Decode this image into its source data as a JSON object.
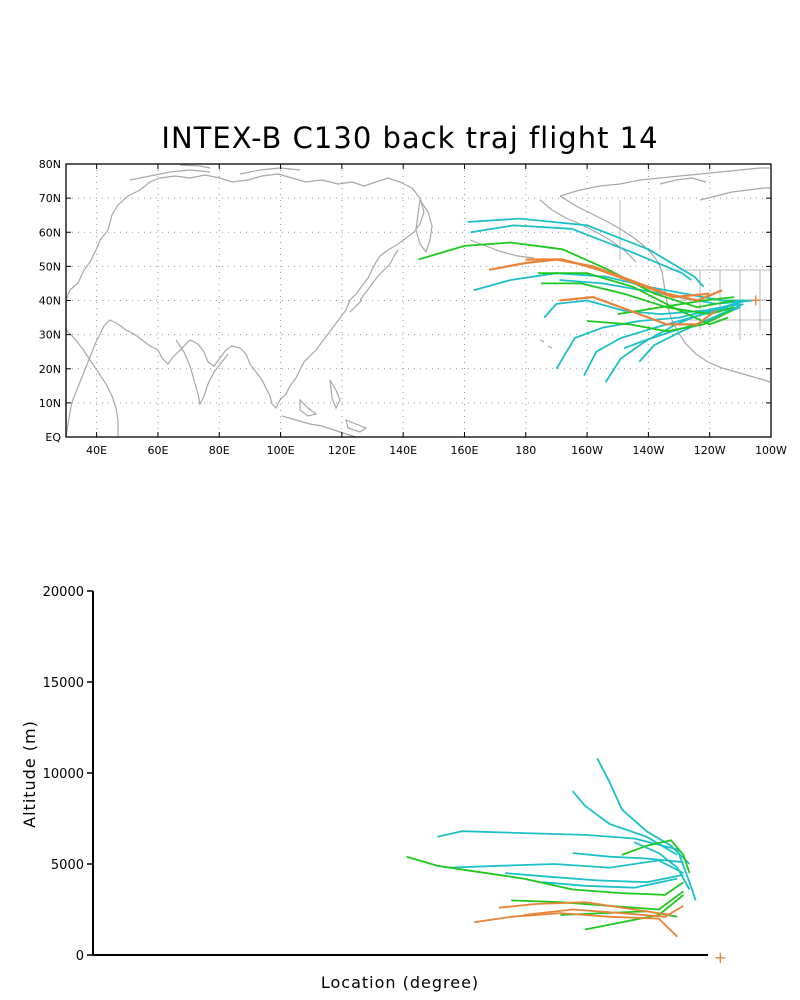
{
  "title": "INTEX-B C130 back traj flight 14",
  "colors": {
    "cyan": "#1ec0c8",
    "green": "#1ec81e",
    "orange": "#e8843a",
    "coastline": "#a8a8a8",
    "axis": "#000000"
  },
  "chart_data": [
    {
      "type": "map-line",
      "title": "INTEX-B C130 back traj flight 14",
      "xlim": [
        30,
        260
      ],
      "ylim": [
        0,
        80
      ],
      "grid": true,
      "lat_ticks": [
        "EQ",
        "10N",
        "20N",
        "30N",
        "40N",
        "50N",
        "60N",
        "70N",
        "80N"
      ],
      "lon_ticks": [
        "40E",
        "60E",
        "80E",
        "100E",
        "120E",
        "140E",
        "160E",
        "180",
        "160W",
        "140W",
        "120W",
        "100W"
      ],
      "end_marker": {
        "lon": 255,
        "lat": 40,
        "symbol": "+",
        "color": "orange"
      },
      "series": [
        {
          "color": "cyan",
          "points": [
            [
              162,
              60
            ],
            [
              176,
              62
            ],
            [
              195,
              61
            ],
            [
              215,
              54
            ],
            [
              231,
              48
            ],
            [
              234,
              46
            ]
          ]
        },
        {
          "color": "cyan",
          "points": [
            [
              161,
              63
            ],
            [
              178,
              64
            ],
            [
              200,
              62
            ],
            [
              220,
              55
            ],
            [
              235,
              47
            ],
            [
              238,
              44
            ]
          ]
        },
        {
          "color": "cyan",
          "points": [
            [
              163,
              43
            ],
            [
              175,
              46
            ],
            [
              190,
              48
            ],
            [
              206,
              47
            ],
            [
              220,
              44
            ],
            [
              232,
              42
            ],
            [
              244,
              40
            ],
            [
              253,
              40
            ]
          ]
        },
        {
          "color": "cyan",
          "points": [
            [
              186,
              35
            ],
            [
              190,
              39
            ],
            [
              200,
              40
            ],
            [
              212,
              37
            ],
            [
              224,
              36
            ],
            [
              238,
              37
            ],
            [
              250,
              39
            ]
          ]
        },
        {
          "color": "cyan",
          "points": [
            [
              190,
              20
            ],
            [
              196,
              29
            ],
            [
              205,
              32
            ],
            [
              217,
              34
            ],
            [
              230,
              35
            ],
            [
              244,
              38
            ],
            [
              252,
              40
            ]
          ]
        },
        {
          "color": "cyan",
          "points": [
            [
              199,
              18
            ],
            [
              203,
              25
            ],
            [
              211,
              29
            ],
            [
              222,
              32
            ],
            [
              234,
              35
            ],
            [
              246,
              38
            ]
          ]
        },
        {
          "color": "cyan",
          "points": [
            [
              206,
              16
            ],
            [
              211,
              23
            ],
            [
              219,
              28
            ],
            [
              229,
              33
            ],
            [
              240,
              37
            ],
            [
              250,
              39
            ]
          ]
        },
        {
          "color": "cyan",
          "points": [
            [
              217,
              22
            ],
            [
              222,
              27
            ],
            [
              231,
              31
            ],
            [
              241,
              35
            ],
            [
              251,
              39
            ]
          ]
        },
        {
          "color": "cyan",
          "points": [
            [
              212,
              26
            ],
            [
              218,
              28
            ],
            [
              228,
              31
            ],
            [
              239,
              34
            ],
            [
              250,
              38
            ]
          ]
        },
        {
          "color": "cyan",
          "points": [
            [
              191,
              46
            ],
            [
              205,
              45
            ],
            [
              218,
              43
            ],
            [
              230,
              41
            ],
            [
              242,
              39
            ],
            [
              254,
              40
            ]
          ]
        },
        {
          "color": "green",
          "points": [
            [
              145,
              52
            ],
            [
              160,
              56
            ],
            [
              175,
              57
            ],
            [
              192,
              55
            ],
            [
              207,
              49
            ],
            [
              222,
              42
            ],
            [
              236,
              38
            ],
            [
              248,
              40
            ]
          ]
        },
        {
          "color": "green",
          "points": [
            [
              185,
              45
            ],
            [
              198,
              45
            ],
            [
              212,
              42
            ],
            [
              226,
              38
            ],
            [
              240,
              36
            ],
            [
              248,
              38
            ]
          ]
        },
        {
          "color": "green",
          "points": [
            [
              184,
              48
            ],
            [
              200,
              48
            ],
            [
              215,
              44
            ],
            [
              228,
              38
            ],
            [
              240,
              33
            ],
            [
              246,
              35
            ]
          ]
        },
        {
          "color": "green",
          "points": [
            [
              200,
              34
            ],
            [
              214,
              33
            ],
            [
              226,
              31
            ],
            [
              238,
              33
            ],
            [
              247,
              37
            ]
          ]
        },
        {
          "color": "green",
          "points": [
            [
              210,
              36
            ],
            [
              224,
              38
            ],
            [
              238,
              40
            ],
            [
              248,
              41
            ]
          ]
        },
        {
          "color": "orange",
          "points": [
            [
              168,
              49
            ],
            [
              180,
              51
            ],
            [
              190,
              52
            ],
            [
              202,
              50
            ],
            [
              214,
              46
            ],
            [
              226,
              42
            ],
            [
              236,
              40
            ],
            [
              244,
              43
            ]
          ]
        },
        {
          "color": "orange",
          "points": [
            [
              180,
              52
            ],
            [
              192,
              52
            ],
            [
              204,
              49
            ],
            [
              216,
              45
            ],
            [
              228,
              41
            ],
            [
              240,
              42
            ]
          ]
        },
        {
          "color": "orange",
          "points": [
            [
              191,
              40
            ],
            [
              202,
              41
            ],
            [
              214,
              37
            ],
            [
              226,
              33
            ],
            [
              236,
              33
            ],
            [
              242,
              37
            ]
          ]
        }
      ]
    },
    {
      "type": "line",
      "title": "",
      "xlabel": "Location (degree)",
      "ylabel": "Altitude (m)",
      "ylim": [
        0,
        20000
      ],
      "xlim": [
        0,
        100
      ],
      "yticks": [
        "0",
        "5000",
        "10000",
        "15000",
        "20000"
      ],
      "end_marker": {
        "x": 102,
        "y": 0,
        "symbol": "+",
        "color": "orange"
      },
      "series": [
        {
          "color": "cyan",
          "points": [
            [
              56,
              6500
            ],
            [
              60,
              6800
            ],
            [
              70,
              6700
            ],
            [
              80,
              6600
            ],
            [
              88,
              6400
            ],
            [
              95,
              5800
            ],
            [
              97,
              4000
            ],
            [
              98,
              3000
            ]
          ]
        },
        {
          "color": "cyan",
          "points": [
            [
              58,
              4800
            ],
            [
              66,
              4900
            ],
            [
              75,
              5000
            ],
            [
              84,
              4800
            ],
            [
              92,
              5200
            ],
            [
              96,
              4500
            ]
          ]
        },
        {
          "color": "cyan",
          "points": [
            [
              78,
              9000
            ],
            [
              80,
              8200
            ],
            [
              84,
              7200
            ],
            [
              90,
              6500
            ],
            [
              95,
              5500
            ]
          ]
        },
        {
          "color": "cyan",
          "points": [
            [
              82,
              10800
            ],
            [
              84,
              9500
            ],
            [
              86,
              8000
            ],
            [
              90,
              6800
            ],
            [
              94,
              6000
            ],
            [
              97,
              5000
            ]
          ]
        },
        {
          "color": "cyan",
          "points": [
            [
              73,
              4000
            ],
            [
              80,
              3800
            ],
            [
              88,
              3700
            ],
            [
              95,
              4200
            ]
          ]
        },
        {
          "color": "cyan",
          "points": [
            [
              78,
              5600
            ],
            [
              84,
              5400
            ],
            [
              90,
              5300
            ],
            [
              96,
              5100
            ]
          ]
        },
        {
          "color": "cyan",
          "points": [
            [
              88,
              6200
            ],
            [
              92,
              5600
            ],
            [
              95,
              4800
            ],
            [
              97,
              3600
            ]
          ]
        },
        {
          "color": "cyan",
          "points": [
            [
              67,
              4500
            ],
            [
              74,
              4300
            ],
            [
              82,
              4100
            ],
            [
              90,
              4000
            ],
            [
              96,
              4400
            ]
          ]
        },
        {
          "color": "green",
          "points": [
            [
              51,
              5400
            ],
            [
              56,
              4900
            ],
            [
              62,
              4600
            ],
            [
              70,
              4200
            ],
            [
              78,
              3600
            ],
            [
              86,
              3400
            ],
            [
              93,
              3300
            ],
            [
              96,
              4000
            ]
          ]
        },
        {
          "color": "green",
          "points": [
            [
              68,
              3000
            ],
            [
              76,
              2900
            ],
            [
              84,
              2700
            ],
            [
              92,
              2500
            ],
            [
              96,
              3500
            ]
          ]
        },
        {
          "color": "green",
          "points": [
            [
              80,
              1400
            ],
            [
              86,
              1800
            ],
            [
              92,
              2200
            ],
            [
              96,
              3300
            ]
          ]
        },
        {
          "color": "green",
          "points": [
            [
              86,
              5500
            ],
            [
              90,
              6000
            ],
            [
              94,
              6300
            ],
            [
              96,
              5500
            ],
            [
              97,
              4500
            ]
          ]
        },
        {
          "color": "green",
          "points": [
            [
              76,
              2200
            ],
            [
              83,
              2300
            ],
            [
              90,
              2400
            ],
            [
              95,
              2100
            ]
          ]
        },
        {
          "color": "orange",
          "points": [
            [
              62,
              1800
            ],
            [
              68,
              2100
            ],
            [
              76,
              2300
            ],
            [
              84,
              2100
            ],
            [
              92,
              2000
            ],
            [
              95,
              1000
            ]
          ]
        },
        {
          "color": "orange",
          "points": [
            [
              66,
              2600
            ],
            [
              72,
              2800
            ],
            [
              80,
              2900
            ],
            [
              88,
              2500
            ],
            [
              94,
              2200
            ]
          ]
        },
        {
          "color": "orange",
          "points": [
            [
              70,
              2200
            ],
            [
              78,
              2500
            ],
            [
              86,
              2300
            ],
            [
              93,
              2100
            ],
            [
              96,
              2700
            ]
          ]
        }
      ]
    }
  ]
}
